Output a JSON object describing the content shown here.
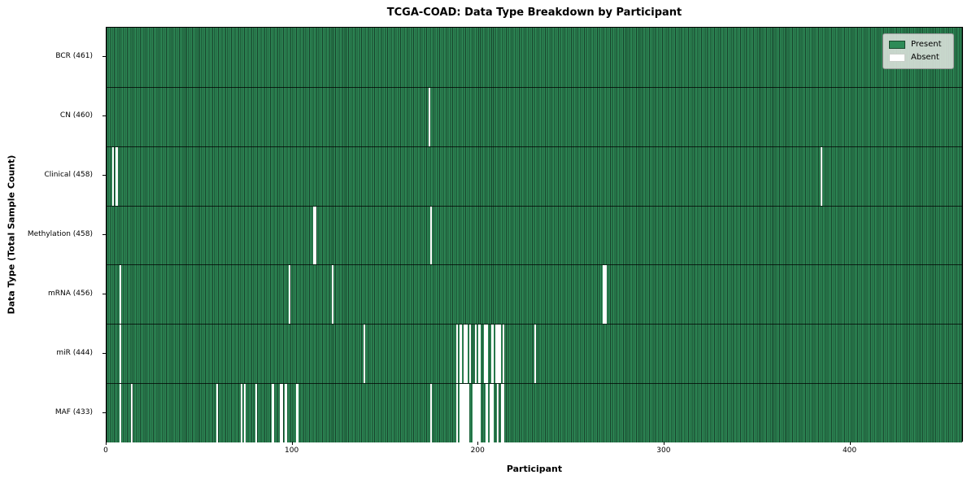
{
  "chart_data": {
    "type": "heatmap",
    "title": "TCGA-COAD: Data Type Breakdown by Participant",
    "xlabel": "Participant",
    "ylabel": "Data Type (Total Sample Count)",
    "n_participants": 461,
    "x_ticks": [
      0,
      100,
      200,
      300,
      400
    ],
    "x_range": [
      0,
      461
    ],
    "grid": "row-separators",
    "legend": {
      "position": "upper-right",
      "present_label": "Present",
      "absent_label": "Absent"
    },
    "colors": {
      "present": "#2e8b57",
      "cell_edge": "#17402a",
      "absent": "#ffffff",
      "legend_bg": "#dee4de"
    },
    "rows": [
      {
        "name": "BCR",
        "label": "BCR (461)",
        "total": 461,
        "absent_participants": []
      },
      {
        "name": "CN",
        "label": "CN (460)",
        "total": 460,
        "absent_participants": [
          173
        ]
      },
      {
        "name": "Clinical",
        "label": "Clinical (458)",
        "total": 458,
        "absent_participants": [
          3,
          5,
          384
        ]
      },
      {
        "name": "Methylation",
        "label": "Methylation (458)",
        "total": 458,
        "absent_participants": [
          111,
          112,
          174
        ]
      },
      {
        "name": "mRNA",
        "label": "mRNA (456)",
        "total": 456,
        "absent_participants": [
          7,
          98,
          121,
          267,
          268
        ]
      },
      {
        "name": "miR",
        "label": "miR (444)",
        "total": 444,
        "absent_participants": [
          7,
          138,
          188,
          190,
          192,
          193,
          195,
          198,
          200,
          203,
          204,
          207,
          209,
          210,
          211,
          213,
          230
        ]
      },
      {
        "name": "MAF",
        "label": "MAF (433)",
        "total": 433,
        "absent_participants": [
          7,
          13,
          59,
          72,
          74,
          80,
          89,
          93,
          94,
          96,
          102,
          174,
          188,
          190,
          191,
          192,
          193,
          194,
          197,
          198,
          199,
          200,
          204,
          206,
          207,
          210,
          212,
          213
        ]
      }
    ]
  }
}
